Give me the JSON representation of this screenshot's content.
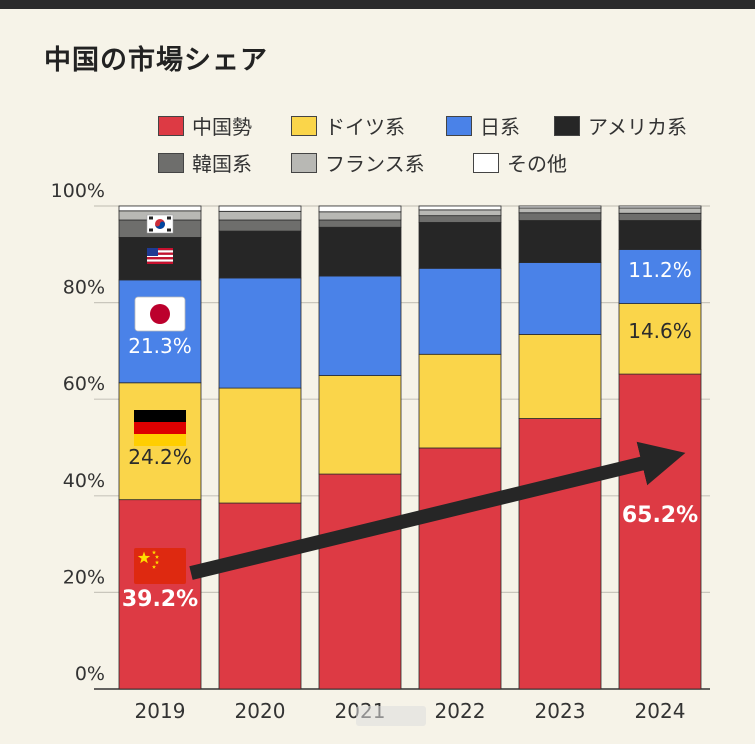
{
  "title": "中国の市場シェア",
  "colors": {
    "中国勢": "#dd3a44",
    "ドイツ系": "#fad54a",
    "日系": "#4a82e8",
    "アメリカ系": "#262626",
    "韓国系": "#6e6e6c",
    "フランス系": "#b8b8b4",
    "その他": "#ffffff"
  },
  "chart_data": {
    "type": "bar",
    "stacked": true,
    "title": "中国の市場シェア",
    "categories": [
      "2019",
      "2020",
      "2021",
      "2022",
      "2023",
      "2024"
    ],
    "ylim": [
      0,
      100
    ],
    "yticks": [
      "0%",
      "20%",
      "40%",
      "60%",
      "80%",
      "100%"
    ],
    "legend": [
      "中国勢",
      "ドイツ系",
      "日系",
      "アメリカ系",
      "韓国系",
      "フランス系",
      "その他"
    ],
    "series": [
      {
        "name": "中国勢",
        "values": [
          39.2,
          38.5,
          44.5,
          49.9,
          56.0,
          65.2
        ]
      },
      {
        "name": "ドイツ系",
        "values": [
          24.2,
          23.8,
          20.4,
          19.4,
          17.4,
          14.6
        ]
      },
      {
        "name": "日系",
        "values": [
          21.3,
          22.8,
          20.6,
          17.8,
          14.9,
          11.2
        ]
      },
      {
        "name": "アメリカ系",
        "values": [
          8.8,
          9.7,
          10.1,
          9.5,
          8.7,
          6.0
        ]
      },
      {
        "name": "韓国系",
        "values": [
          3.6,
          2.3,
          1.5,
          1.4,
          1.6,
          1.5
        ]
      },
      {
        "name": "フランス系",
        "values": [
          1.9,
          1.8,
          1.7,
          1.2,
          1.0,
          1.1
        ]
      },
      {
        "name": "その他",
        "values": [
          1.0,
          1.1,
          1.2,
          0.8,
          0.4,
          0.4
        ]
      }
    ],
    "data_labels": [
      {
        "category": "2019",
        "series": "中国勢",
        "text": "39.2%"
      },
      {
        "category": "2019",
        "series": "ドイツ系",
        "text": "24.2%"
      },
      {
        "category": "2019",
        "series": "日系",
        "text": "21.3%"
      },
      {
        "category": "2024",
        "series": "中国勢",
        "text": "65.2%"
      },
      {
        "category": "2024",
        "series": "ドイツ系",
        "text": "14.6%"
      },
      {
        "category": "2024",
        "series": "日系",
        "text": "11.2%"
      }
    ],
    "annotations": [
      {
        "type": "arrow",
        "from": [
          "2019",
          24
        ],
        "to": [
          "2024",
          48
        ]
      },
      {
        "type": "flag",
        "country": "South Korea",
        "category": "2019",
        "series": "韓国系"
      },
      {
        "type": "flag",
        "country": "United States",
        "category": "2019",
        "series": "アメリカ系"
      },
      {
        "type": "flag",
        "country": "Japan",
        "category": "2019",
        "series": "日系"
      },
      {
        "type": "flag",
        "country": "Germany",
        "category": "2019",
        "series": "ドイツ系"
      },
      {
        "type": "flag",
        "country": "China",
        "category": "2019",
        "series": "中国勢"
      }
    ]
  }
}
